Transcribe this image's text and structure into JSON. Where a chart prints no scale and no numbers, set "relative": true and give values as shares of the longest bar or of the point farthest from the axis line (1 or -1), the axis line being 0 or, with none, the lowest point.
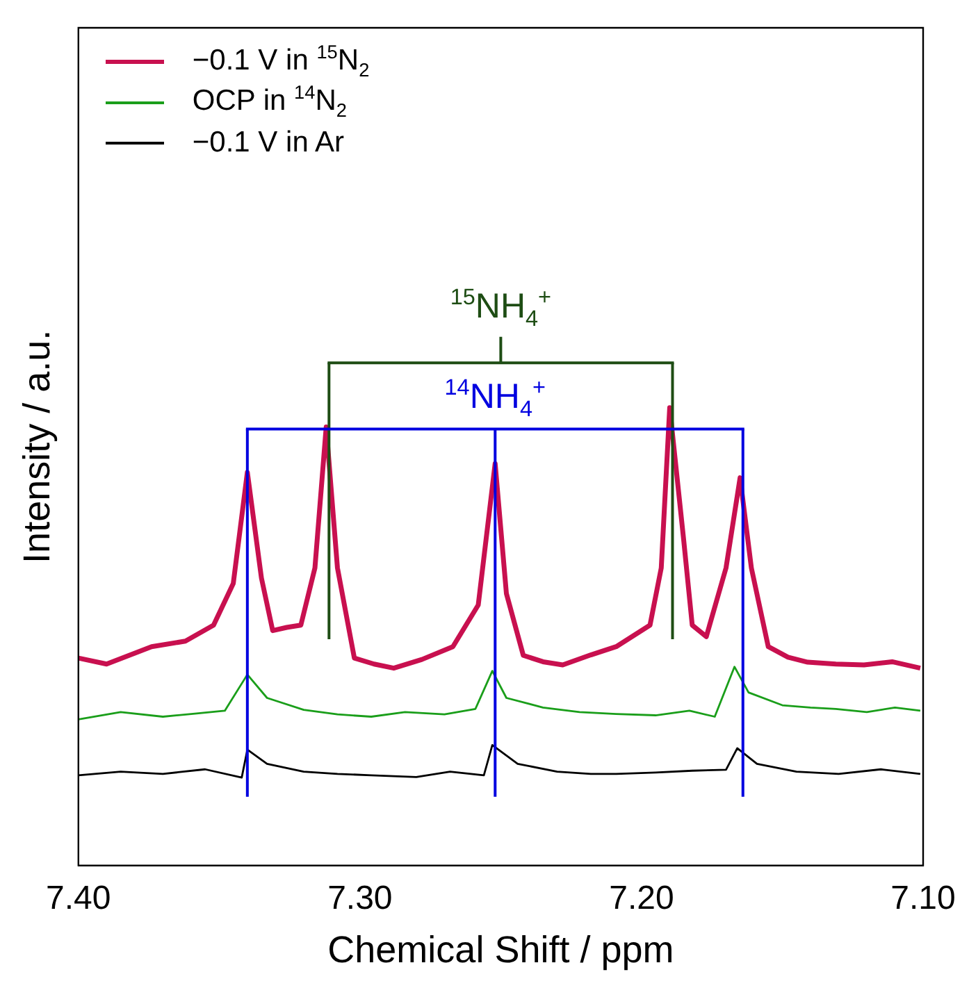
{
  "chart_data": {
    "type": "line",
    "relative": true,
    "xlabel": "Chemical Shift / ppm",
    "ylabel": "Intensity / a.u.",
    "legend": "top left",
    "xlim": [
      7.4,
      7.1
    ],
    "xticks": [
      {
        "value": 7.4,
        "label": "7.40"
      },
      {
        "value": 7.3,
        "label": "7.30"
      },
      {
        "value": 7.2,
        "label": "7.20"
      },
      {
        "value": 7.1,
        "label": "7.10"
      }
    ],
    "series": [
      {
        "name": "−0.1 V in $^{15}$N$_{2}$",
        "color": "#c8104f",
        "x": [
          7.4,
          7.39,
          7.374,
          7.362,
          7.352,
          7.345,
          7.34,
          7.335,
          7.331,
          7.326,
          7.321,
          7.316,
          7.312,
          7.308,
          7.302,
          7.295,
          7.288,
          7.278,
          7.267,
          7.258,
          7.252,
          7.248,
          7.242,
          7.235,
          7.228,
          7.218,
          7.209,
          7.197,
          7.193,
          7.19,
          7.185,
          7.182,
          7.177,
          7.17,
          7.165,
          7.161,
          7.155,
          7.148,
          7.141,
          7.131,
          7.121,
          7.111,
          7.101
        ],
        "values": [
          0.453,
          0.44,
          0.478,
          0.49,
          0.525,
          0.616,
          0.859,
          0.628,
          0.513,
          0.52,
          0.525,
          0.65,
          0.958,
          0.65,
          0.453,
          0.44,
          0.431,
          0.45,
          0.478,
          0.569,
          0.878,
          0.594,
          0.459,
          0.445,
          0.438,
          0.46,
          0.478,
          0.525,
          0.65,
          1,
          0.709,
          0.525,
          0.5,
          0.65,
          0.847,
          0.65,
          0.478,
          0.455,
          0.444,
          0.44,
          0.438,
          0.445,
          0.431
        ]
      },
      {
        "name": "OCP in $^{14}$N$_{2}$",
        "color": "#1a9e1a",
        "x": [
          7.4,
          7.385,
          7.37,
          7.358,
          7.348,
          7.34,
          7.333,
          7.32,
          7.308,
          7.296,
          7.284,
          7.27,
          7.259,
          7.253,
          7.248,
          7.235,
          7.222,
          7.209,
          7.195,
          7.183,
          7.174,
          7.167,
          7.162,
          7.15,
          7.14,
          7.131,
          7.12,
          7.11,
          7.101
        ],
        "values": [
          0.319,
          0.335,
          0.325,
          0.332,
          0.338,
          0.417,
          0.366,
          0.34,
          0.33,
          0.325,
          0.335,
          0.33,
          0.342,
          0.425,
          0.366,
          0.345,
          0.335,
          0.331,
          0.328,
          0.338,
          0.325,
          0.434,
          0.378,
          0.35,
          0.345,
          0.342,
          0.335,
          0.345,
          0.338
        ]
      },
      {
        "name": "−0.1 V in Ar",
        "color": "#000000",
        "x": [
          7.4,
          7.385,
          7.37,
          7.355,
          7.342,
          7.34,
          7.333,
          7.32,
          7.308,
          7.296,
          7.28,
          7.268,
          7.256,
          7.253,
          7.244,
          7.23,
          7.218,
          7.209,
          7.195,
          7.182,
          7.17,
          7.166,
          7.159,
          7.145,
          7.13,
          7.115,
          7.101
        ],
        "values": [
          0.197,
          0.205,
          0.2,
          0.21,
          0.192,
          0.253,
          0.222,
          0.205,
          0.2,
          0.197,
          0.193,
          0.205,
          0.197,
          0.263,
          0.222,
          0.205,
          0.2,
          0.2,
          0.203,
          0.207,
          0.209,
          0.256,
          0.222,
          0.205,
          0.2,
          0.21,
          0.2
        ]
      }
    ],
    "ref_lines": [
      {
        "axis": "x",
        "value": 7.311,
        "color": "#1e4d14"
      },
      {
        "axis": "x",
        "value": 7.189,
        "color": "#1e4d14"
      },
      {
        "axis": "x",
        "value": 7.34,
        "color": "#0000e0"
      },
      {
        "axis": "x",
        "value": 7.252,
        "color": "#0000e0"
      },
      {
        "axis": "x",
        "value": 7.164,
        "color": "#0000e0"
      }
    ],
    "annotations": [
      "$^{15}$NH$_{4}$$^{+}$",
      "$^{14}$NH$_{4}$$^{+}$"
    ]
  }
}
